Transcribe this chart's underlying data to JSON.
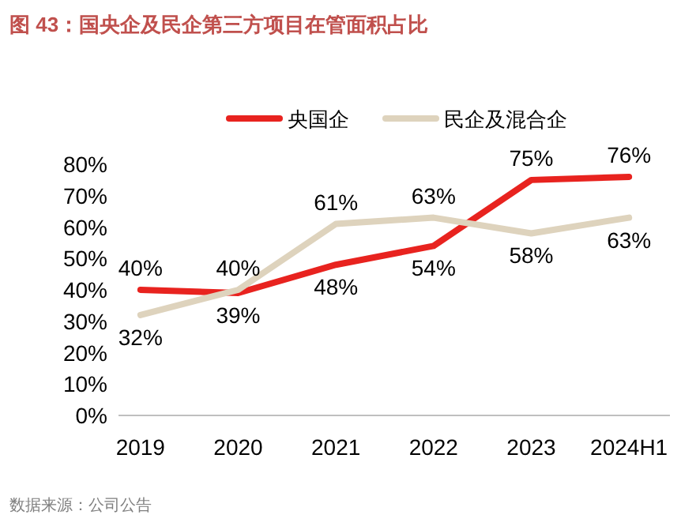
{
  "chart_data": {
    "type": "line",
    "title": "图 43：国央企及民企第三方项目在管面积占比",
    "categories": [
      "2019",
      "2020",
      "2021",
      "2022",
      "2023",
      "2024H1"
    ],
    "series": [
      {
        "name": "央国企",
        "color": "#e8231f",
        "values": [
          40,
          39,
          48,
          54,
          75,
          76
        ],
        "value_labels": [
          "40%",
          "39%",
          "48%",
          "54%",
          "75%",
          "76%"
        ]
      },
      {
        "name": "民企及混合企",
        "color": "#ded3bd",
        "values": [
          32,
          40,
          61,
          63,
          58,
          63
        ],
        "value_labels": [
          "32%",
          "40%",
          "61%",
          "63%",
          "58%",
          "63%"
        ]
      }
    ],
    "ylim": [
      0,
      80
    ],
    "yticks": [
      {
        "value": 0,
        "label": "0%"
      },
      {
        "value": 10,
        "label": "10%"
      },
      {
        "value": 20,
        "label": "20%"
      },
      {
        "value": 30,
        "label": "30%"
      },
      {
        "value": 40,
        "label": "40%"
      },
      {
        "value": 50,
        "label": "50%"
      },
      {
        "value": 60,
        "label": "60%"
      },
      {
        "value": 70,
        "label": "70%"
      },
      {
        "value": 80,
        "label": "80%"
      }
    ],
    "legend": "top",
    "grid": false,
    "annotations": [
      "数据来源：公司公告"
    ]
  }
}
